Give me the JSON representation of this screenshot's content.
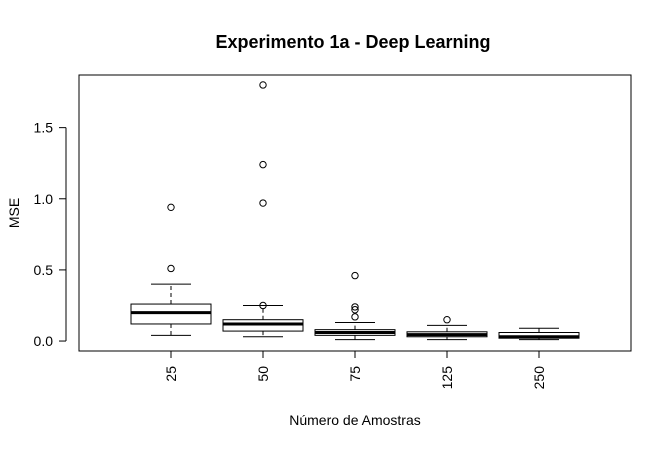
{
  "chart_data": {
    "type": "boxplot",
    "title": "Experimento 1a - Deep Learning",
    "xlabel": "Número de Amostras",
    "ylabel": "MSE",
    "ylim": [
      -0.07,
      1.87
    ],
    "yticks": [
      0.0,
      0.5,
      1.0,
      1.5
    ],
    "ytick_labels": [
      "0.0",
      "0.5",
      "1.0",
      "1.5"
    ],
    "categories": [
      "25",
      "50",
      "75",
      "125",
      "250"
    ],
    "grid": false,
    "boxes": [
      {
        "category": "25",
        "whisker_low": 0.04,
        "q1": 0.12,
        "median": 0.2,
        "q3": 0.26,
        "whisker_high": 0.4,
        "outliers": [
          0.51,
          0.94
        ]
      },
      {
        "category": "50",
        "whisker_low": 0.03,
        "q1": 0.07,
        "median": 0.12,
        "q3": 0.15,
        "whisker_high": 0.25,
        "outliers": [
          0.25,
          0.97,
          1.24,
          1.8
        ]
      },
      {
        "category": "75",
        "whisker_low": 0.01,
        "q1": 0.04,
        "median": 0.06,
        "q3": 0.08,
        "whisker_high": 0.13,
        "outliers": [
          0.17,
          0.22,
          0.24,
          0.46
        ]
      },
      {
        "category": "125",
        "whisker_low": 0.01,
        "q1": 0.03,
        "median": 0.045,
        "q3": 0.065,
        "whisker_high": 0.11,
        "outliers": [
          0.15
        ]
      },
      {
        "category": "250",
        "whisker_low": 0.01,
        "q1": 0.02,
        "median": 0.03,
        "q3": 0.06,
        "whisker_high": 0.09,
        "outliers": []
      }
    ]
  }
}
